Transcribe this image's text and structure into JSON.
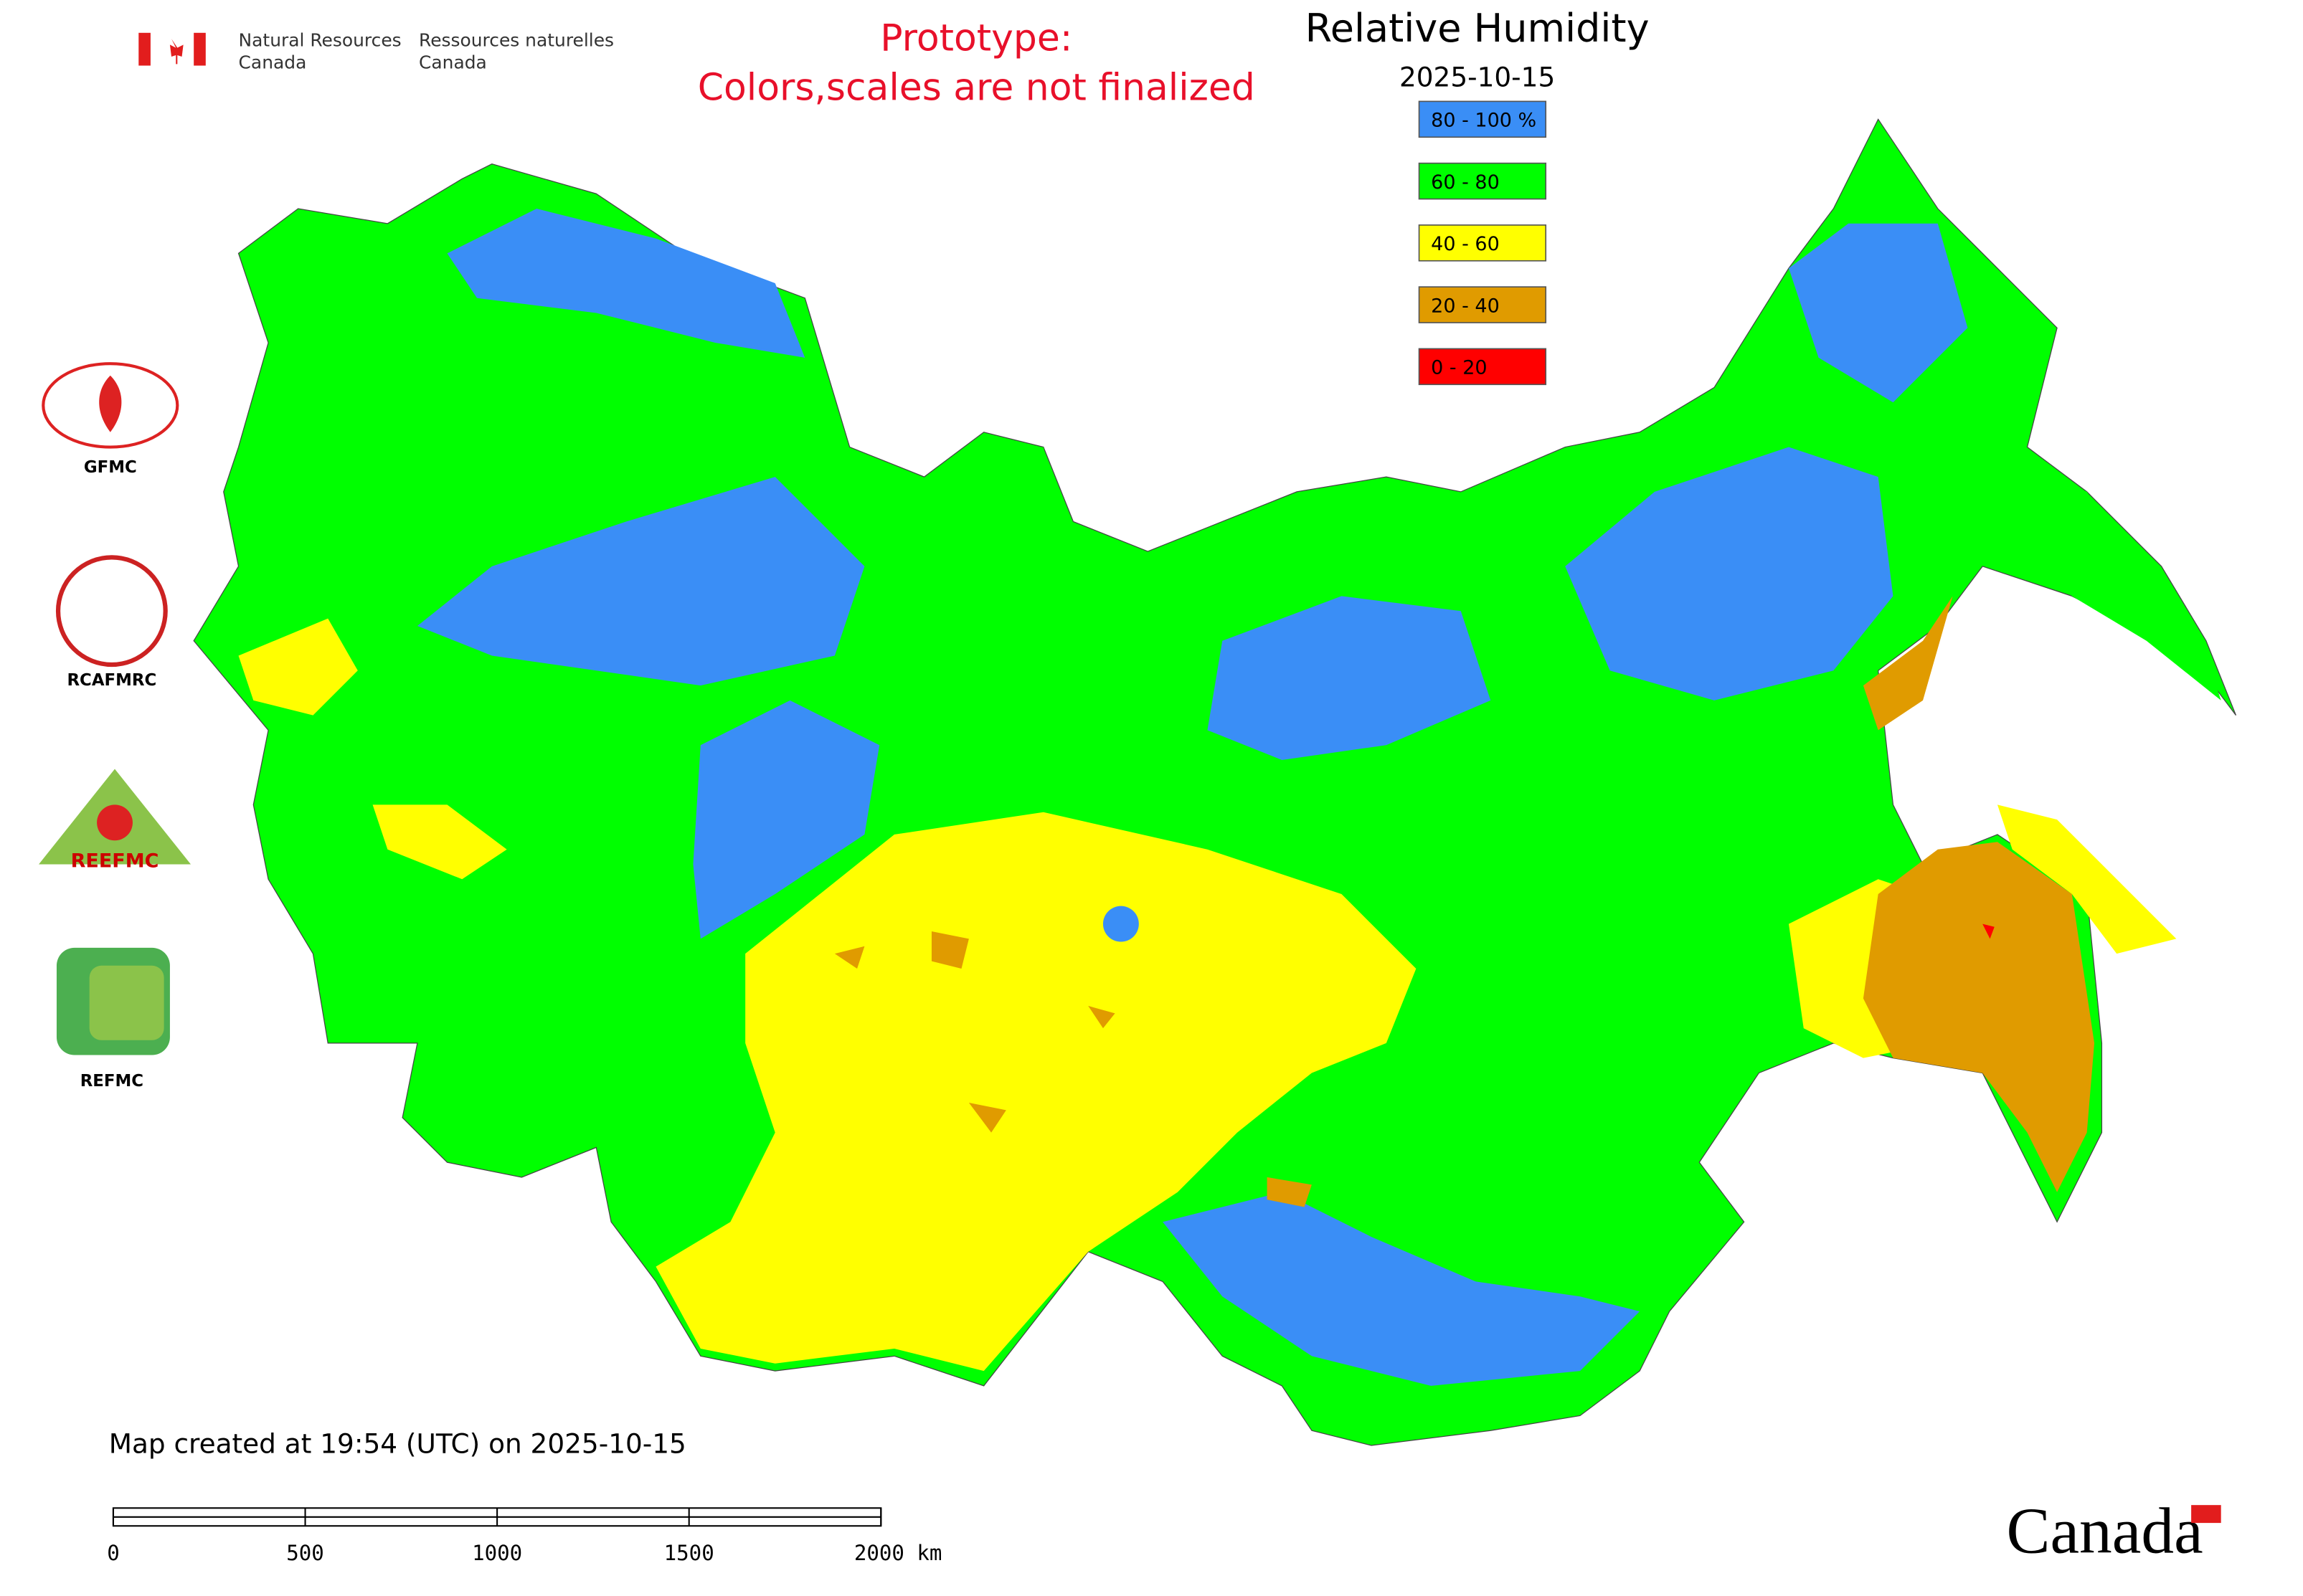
{
  "header": {
    "agency_en": "Natural Resources",
    "agency_en_2": "Canada",
    "agency_fr": "Ressources naturelles",
    "agency_fr_2": "Canada"
  },
  "notice": {
    "line1": "Prototype:",
    "line2": "Colors,scales are not finalized"
  },
  "title": "Relative Humidity",
  "date": "2025-10-15",
  "legend": {
    "items": [
      {
        "label": "80 - 100 %",
        "color": "#3a8ef6"
      },
      {
        "label": "60 - 80",
        "color": "#00ff00"
      },
      {
        "label": "40 - 60",
        "color": "#ffff00"
      },
      {
        "label": "20 - 40",
        "color": "#e09b00"
      },
      {
        "label": "0 - 20",
        "color": "#ff0000"
      }
    ]
  },
  "logos": [
    "GFMC",
    "RCAFMRC",
    "REEFMC",
    "REFMC"
  ],
  "footer": {
    "created": "Map created at 19:54 (UTC) on 2025-10-15",
    "wordmark": "Canada"
  },
  "scale_bar": {
    "labels": [
      "0",
      "500",
      "1000",
      "1500",
      "2000 km"
    ]
  }
}
